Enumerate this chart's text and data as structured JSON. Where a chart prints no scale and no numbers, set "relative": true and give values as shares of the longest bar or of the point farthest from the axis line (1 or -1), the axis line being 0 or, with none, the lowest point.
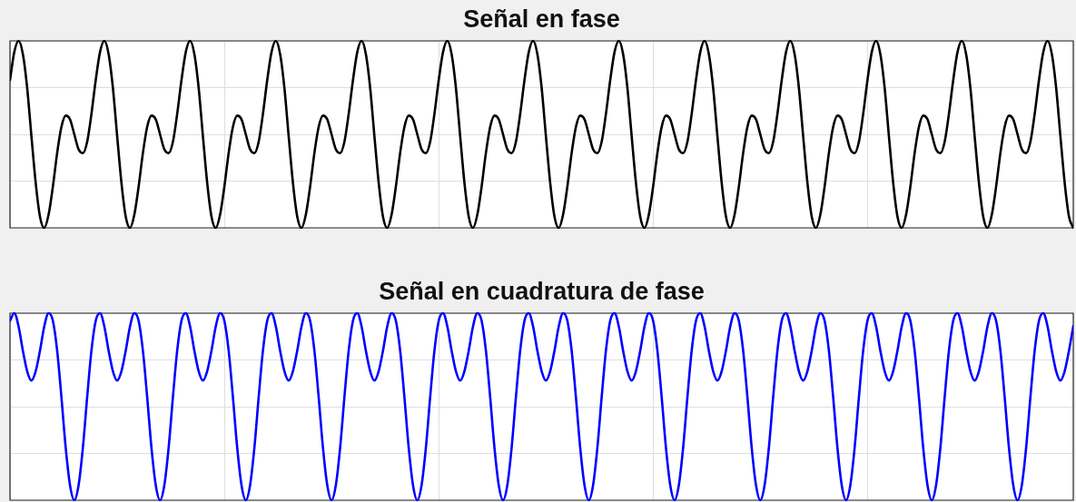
{
  "chart_data": [
    {
      "type": "line",
      "title": "Señal en fase",
      "relative": true,
      "grid": true,
      "color": "#000000",
      "categories": [
        null,
        null,
        null,
        null,
        null,
        null,
        null,
        null,
        null,
        null,
        null,
        null,
        null,
        null,
        null,
        null,
        null,
        null,
        null,
        null,
        null,
        null,
        null,
        null,
        null,
        null,
        null,
        null,
        null,
        null,
        null,
        null,
        null,
        null,
        null,
        null,
        null,
        null,
        null,
        null,
        null,
        null,
        null,
        null,
        null,
        null,
        null,
        null,
        null,
        null,
        null,
        null,
        null,
        null,
        null,
        null,
        null,
        null,
        null,
        null,
        null,
        null,
        null,
        null,
        null,
        null,
        null,
        null,
        null,
        null,
        null,
        null,
        null,
        null,
        null,
        null,
        null,
        null,
        null,
        null,
        null,
        null,
        null,
        null,
        null,
        null,
        null,
        null,
        null,
        null,
        null,
        null,
        null,
        null,
        null,
        null,
        null,
        null,
        null,
        null,
        null,
        null,
        null,
        null,
        null,
        null,
        null,
        null,
        null,
        null,
        null,
        null,
        null,
        null,
        null,
        null,
        null,
        null,
        null,
        null,
        null,
        null,
        null,
        null,
        null,
        null,
        null,
        null,
        null,
        null,
        null,
        null,
        null,
        null,
        null,
        null,
        null,
        null,
        null,
        null,
        null,
        null,
        null,
        null,
        null,
        null,
        null,
        null,
        null,
        null,
        null,
        null,
        null,
        null,
        null,
        null,
        null,
        null,
        null,
        null,
        null,
        null,
        null,
        null,
        null,
        null,
        null,
        null,
        null,
        null,
        null,
        null,
        null,
        null,
        null,
        null,
        null,
        null,
        null,
        null,
        null,
        null,
        null,
        null,
        null,
        null,
        null,
        null,
        null,
        null,
        null,
        null,
        null,
        null,
        null,
        null,
        null,
        null,
        null,
        null,
        null,
        null,
        null,
        null,
        null,
        null,
        null,
        null,
        null,
        null,
        null,
        null,
        null,
        null,
        null,
        null,
        null,
        null,
        null,
        null,
        null,
        null,
        null,
        null,
        null,
        null,
        null,
        null,
        null,
        null,
        null,
        null,
        null,
        null,
        null,
        null,
        null,
        null,
        null,
        null,
        null,
        null,
        null,
        null,
        null,
        null,
        null,
        null,
        null
      ],
      "values": [
        0.79,
        0.94,
        1,
        0.93,
        0.75,
        0.49,
        0.24,
        0.06,
        0,
        0.07,
        0.22,
        0.4,
        0.54,
        0.6,
        0.58,
        0.5,
        0.42,
        0.4,
        0.46,
        0.61,
        0.79,
        0.94,
        1,
        0.93,
        0.75,
        0.49,
        0.24,
        0.06,
        0,
        0.07,
        0.22,
        0.4,
        0.54,
        0.6,
        0.58,
        0.5,
        0.42,
        0.4,
        0.46,
        0.61,
        0.79,
        0.94,
        1,
        0.93,
        0.75,
        0.49,
        0.24,
        0.06,
        0,
        0.07,
        0.22,
        0.4,
        0.54,
        0.6,
        0.58,
        0.5,
        0.42,
        0.4,
        0.46,
        0.61,
        0.79,
        0.94,
        1,
        0.93,
        0.75,
        0.49,
        0.24,
        0.06,
        0,
        0.07,
        0.22,
        0.4,
        0.54,
        0.6,
        0.58,
        0.5,
        0.42,
        0.4,
        0.46,
        0.61,
        0.79,
        0.94,
        1,
        0.93,
        0.75,
        0.49,
        0.24,
        0.06,
        0,
        0.07,
        0.22,
        0.4,
        0.54,
        0.6,
        0.58,
        0.5,
        0.42,
        0.4,
        0.46,
        0.61,
        0.79,
        0.94,
        1,
        0.93,
        0.75,
        0.49,
        0.24,
        0.06,
        0,
        0.07,
        0.22,
        0.4,
        0.54,
        0.6,
        0.58,
        0.5,
        0.42,
        0.4,
        0.46,
        0.61,
        0.79,
        0.94,
        1,
        0.93,
        0.75,
        0.49,
        0.24,
        0.06,
        0,
        0.07,
        0.22,
        0.4,
        0.54,
        0.6,
        0.58,
        0.5,
        0.42,
        0.4,
        0.46,
        0.61,
        0.79,
        0.94,
        1,
        0.93,
        0.75,
        0.49,
        0.24,
        0.06,
        0,
        0.07,
        0.22,
        0.4,
        0.54,
        0.6,
        0.58,
        0.5,
        0.42,
        0.4,
        0.46,
        0.61,
        0.79,
        0.94,
        1,
        0.93,
        0.75,
        0.49,
        0.24,
        0.06,
        0,
        0.07,
        0.22,
        0.4,
        0.54,
        0.6,
        0.58,
        0.5,
        0.42,
        0.4,
        0.46,
        0.61,
        0.79,
        0.94,
        1,
        0.93,
        0.75,
        0.49,
        0.24,
        0.06,
        0,
        0.07,
        0.22,
        0.4,
        0.54,
        0.6,
        0.58,
        0.5,
        0.42,
        0.4,
        0.46,
        0.61,
        0.79,
        0.94,
        1,
        0.93,
        0.75,
        0.49,
        0.24,
        0.06,
        0,
        0.07,
        0.22,
        0.4,
        0.54,
        0.6,
        0.58,
        0.5,
        0.42,
        0.4,
        0.46,
        0.61,
        0.79,
        0.94,
        1,
        0.93,
        0.75,
        0.49,
        0.24,
        0.06,
        0,
        0.07,
        0.22,
        0.4,
        0.54,
        0.6,
        0.58,
        0.5,
        0.42,
        0.4,
        0.46,
        0.61,
        0.79,
        0.94,
        1,
        0.93,
        0.75,
        0.49,
        0.24,
        0.06,
        0
      ]
    },
    {
      "type": "line",
      "title": "Señal en cuadratura de fase",
      "relative": true,
      "grid": true,
      "color": "#0000ff",
      "categories": [
        null,
        null,
        null,
        null,
        null,
        null,
        null,
        null,
        null,
        null,
        null,
        null,
        null,
        null,
        null,
        null,
        null,
        null,
        null,
        null,
        null,
        null,
        null,
        null,
        null,
        null,
        null,
        null,
        null,
        null,
        null,
        null,
        null,
        null,
        null,
        null,
        null,
        null,
        null,
        null,
        null,
        null,
        null,
        null,
        null,
        null,
        null,
        null,
        null,
        null,
        null,
        null,
        null,
        null,
        null,
        null,
        null,
        null,
        null,
        null,
        null,
        null,
        null,
        null,
        null,
        null,
        null,
        null,
        null,
        null,
        null,
        null,
        null,
        null,
        null,
        null,
        null,
        null,
        null,
        null,
        null,
        null,
        null,
        null,
        null,
        null,
        null,
        null,
        null,
        null,
        null,
        null,
        null,
        null,
        null,
        null,
        null,
        null,
        null,
        null,
        null,
        null,
        null,
        null,
        null,
        null,
        null,
        null,
        null,
        null,
        null,
        null,
        null,
        null,
        null,
        null,
        null,
        null,
        null,
        null,
        null,
        null,
        null,
        null,
        null,
        null,
        null,
        null,
        null,
        null,
        null,
        null,
        null,
        null,
        null,
        null,
        null,
        null,
        null,
        null,
        null,
        null,
        null,
        null,
        null,
        null,
        null,
        null,
        null,
        null,
        null,
        null,
        null,
        null,
        null,
        null,
        null,
        null,
        null,
        null,
        null,
        null,
        null,
        null,
        null,
        null,
        null,
        null,
        null,
        null,
        null,
        null,
        null,
        null,
        null,
        null,
        null,
        null,
        null,
        null,
        null,
        null,
        null,
        null,
        null,
        null,
        null,
        null,
        null,
        null,
        null,
        null,
        null,
        null,
        null,
        null,
        null,
        null,
        null,
        null,
        null,
        null,
        null,
        null,
        null,
        null,
        null,
        null,
        null,
        null,
        null,
        null,
        null,
        null,
        null,
        null,
        null,
        null,
        null,
        null,
        null,
        null,
        null,
        null,
        null,
        null,
        null,
        null,
        null,
        null,
        null,
        null,
        null,
        null,
        null,
        null,
        null,
        null,
        null,
        null,
        null,
        null,
        null,
        null,
        null,
        null,
        null,
        null,
        null
      ],
      "values": [
        0.96,
        1,
        0.93,
        0.8,
        0.69,
        0.64,
        0.69,
        0.8,
        0.93,
        1,
        0.96,
        0.8,
        0.55,
        0.28,
        0.08,
        0,
        0.08,
        0.28,
        0.55,
        0.8,
        0.96,
        1,
        0.93,
        0.8,
        0.69,
        0.64,
        0.69,
        0.8,
        0.93,
        1,
        0.96,
        0.8,
        0.55,
        0.28,
        0.08,
        0,
        0.08,
        0.28,
        0.55,
        0.8,
        0.96,
        1,
        0.93,
        0.8,
        0.69,
        0.64,
        0.69,
        0.8,
        0.93,
        1,
        0.96,
        0.8,
        0.55,
        0.28,
        0.08,
        0,
        0.08,
        0.28,
        0.55,
        0.8,
        0.96,
        1,
        0.93,
        0.8,
        0.69,
        0.64,
        0.69,
        0.8,
        0.93,
        1,
        0.96,
        0.8,
        0.55,
        0.28,
        0.08,
        0,
        0.08,
        0.28,
        0.55,
        0.8,
        0.96,
        1,
        0.93,
        0.8,
        0.69,
        0.64,
        0.69,
        0.8,
        0.93,
        1,
        0.96,
        0.8,
        0.55,
        0.28,
        0.08,
        0,
        0.08,
        0.28,
        0.55,
        0.8,
        0.96,
        1,
        0.93,
        0.8,
        0.69,
        0.64,
        0.69,
        0.8,
        0.93,
        1,
        0.96,
        0.8,
        0.55,
        0.28,
        0.08,
        0,
        0.08,
        0.28,
        0.55,
        0.8,
        0.96,
        1,
        0.93,
        0.8,
        0.69,
        0.64,
        0.69,
        0.8,
        0.93,
        1,
        0.96,
        0.8,
        0.55,
        0.28,
        0.08,
        0,
        0.08,
        0.28,
        0.55,
        0.8,
        0.96,
        1,
        0.93,
        0.8,
        0.69,
        0.64,
        0.69,
        0.8,
        0.93,
        1,
        0.96,
        0.8,
        0.55,
        0.28,
        0.08,
        0,
        0.08,
        0.28,
        0.55,
        0.8,
        0.96,
        1,
        0.93,
        0.8,
        0.69,
        0.64,
        0.69,
        0.8,
        0.93,
        1,
        0.96,
        0.8,
        0.55,
        0.28,
        0.08,
        0,
        0.08,
        0.28,
        0.55,
        0.8,
        0.96,
        1,
        0.93,
        0.8,
        0.69,
        0.64,
        0.69,
        0.8,
        0.93,
        1,
        0.96,
        0.8,
        0.55,
        0.28,
        0.08,
        0,
        0.08,
        0.28,
        0.55,
        0.8,
        0.96,
        1,
        0.93,
        0.8,
        0.69,
        0.64,
        0.69,
        0.8,
        0.93,
        1,
        0.96,
        0.8,
        0.55,
        0.28,
        0.08,
        0,
        0.08,
        0.28,
        0.55,
        0.8,
        0.96,
        1,
        0.93,
        0.8,
        0.69,
        0.64,
        0.69,
        0.8,
        0.93,
        1,
        0.96,
        0.8,
        0.55,
        0.28,
        0.08,
        0,
        0.08,
        0.28,
        0.55,
        0.8,
        0.96,
        1,
        0.93,
        0.8,
        0.69,
        0.64,
        0.69,
        0.8,
        0.93
      ]
    }
  ]
}
